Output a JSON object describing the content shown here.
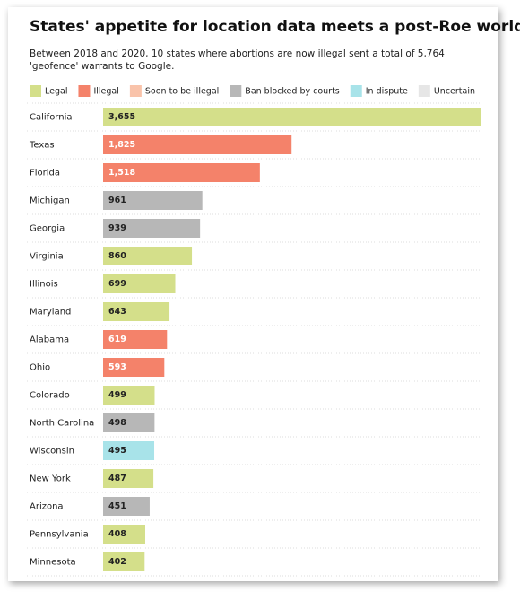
{
  "chart_data": {
    "type": "bar",
    "title": "States' appetite for location data meets a post-Roe world",
    "subtitle": "Between 2018 and 2020, 10 states where abortions are now illegal sent a total of 5,764 'geofence' warrants to Google.",
    "legend": [
      {
        "name": "Legal",
        "color": "#d4df8a"
      },
      {
        "name": "Illegal",
        "color": "#f4826a"
      },
      {
        "name": "Soon to be illegal",
        "color": "#f9c3aa"
      },
      {
        "name": "Ban blocked by courts",
        "color": "#b7b7b7"
      },
      {
        "name": "In dispute",
        "color": "#a8e3e9"
      },
      {
        "name": "Uncertain",
        "color": "#e6e6e6"
      }
    ],
    "categories": [
      "California",
      "Texas",
      "Florida",
      "Michigan",
      "Georgia",
      "Virginia",
      "Illinois",
      "Maryland",
      "Alabama",
      "Ohio",
      "Colorado",
      "North Carolina",
      "Wisconsin",
      "New York",
      "Arizona",
      "Pennsylvania",
      "Minnesota"
    ],
    "values": [
      3655,
      1825,
      1518,
      961,
      939,
      860,
      699,
      643,
      619,
      593,
      499,
      498,
      495,
      487,
      451,
      408,
      402
    ],
    "value_labels": [
      "3,655",
      "1,825",
      "1,518",
      "961",
      "939",
      "860",
      "699",
      "643",
      "619",
      "593",
      "499",
      "498",
      "495",
      "487",
      "451",
      "408",
      "402"
    ],
    "colors": [
      "#d4df8a",
      "#f4826a",
      "#f4826a",
      "#b7b7b7",
      "#b7b7b7",
      "#d4df8a",
      "#d4df8a",
      "#d4df8a",
      "#f4826a",
      "#f4826a",
      "#d4df8a",
      "#b7b7b7",
      "#a8e3e9",
      "#d4df8a",
      "#b7b7b7",
      "#d4df8a",
      "#d4df8a"
    ]
  }
}
